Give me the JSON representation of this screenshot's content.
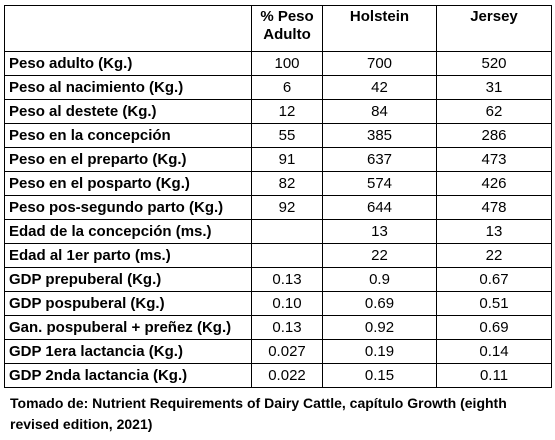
{
  "table": {
    "headers": [
      "",
      "% Peso Adulto",
      "Holstein",
      "Jersey"
    ],
    "rows": [
      [
        "Peso adulto (Kg.)",
        "100",
        "700",
        "520"
      ],
      [
        "Peso al nacimiento (Kg.)",
        "6",
        "42",
        "31"
      ],
      [
        "Peso al destete (Kg.)",
        "12",
        "84",
        "62"
      ],
      [
        "Peso en la concepción",
        "55",
        "385",
        "286"
      ],
      [
        "Peso en el preparto (Kg.)",
        "91",
        "637",
        "473"
      ],
      [
        "Peso en el posparto (Kg.)",
        "82",
        "574",
        "426"
      ],
      [
        "Peso pos-segundo parto (Kg.)",
        "92",
        "644",
        "478"
      ],
      [
        "Edad de la concepción (ms.)",
        "",
        "13",
        "13"
      ],
      [
        "Edad al 1er parto (ms.)",
        "",
        "22",
        "22"
      ],
      [
        "GDP prepuberal (Kg.)",
        "0.13",
        "0.9",
        "0.67"
      ],
      [
        "GDP pospuberal (Kg.)",
        "0.10",
        "0.69",
        "0.51"
      ],
      [
        "Gan. pospuberal + preñez (Kg.)",
        "0.13",
        "0.92",
        "0.69"
      ],
      [
        "GDP 1era lactancia (Kg.)",
        "0.027",
        "0.19",
        "0.14"
      ],
      [
        "GDP 2nda lactancia (Kg.)",
        "0.022",
        "0.15",
        "0.11"
      ]
    ]
  },
  "caption": "Tomado de: Nutrient Requirements of Dairy Cattle, capítulo Growth (eighth revised edition, 2021)"
}
